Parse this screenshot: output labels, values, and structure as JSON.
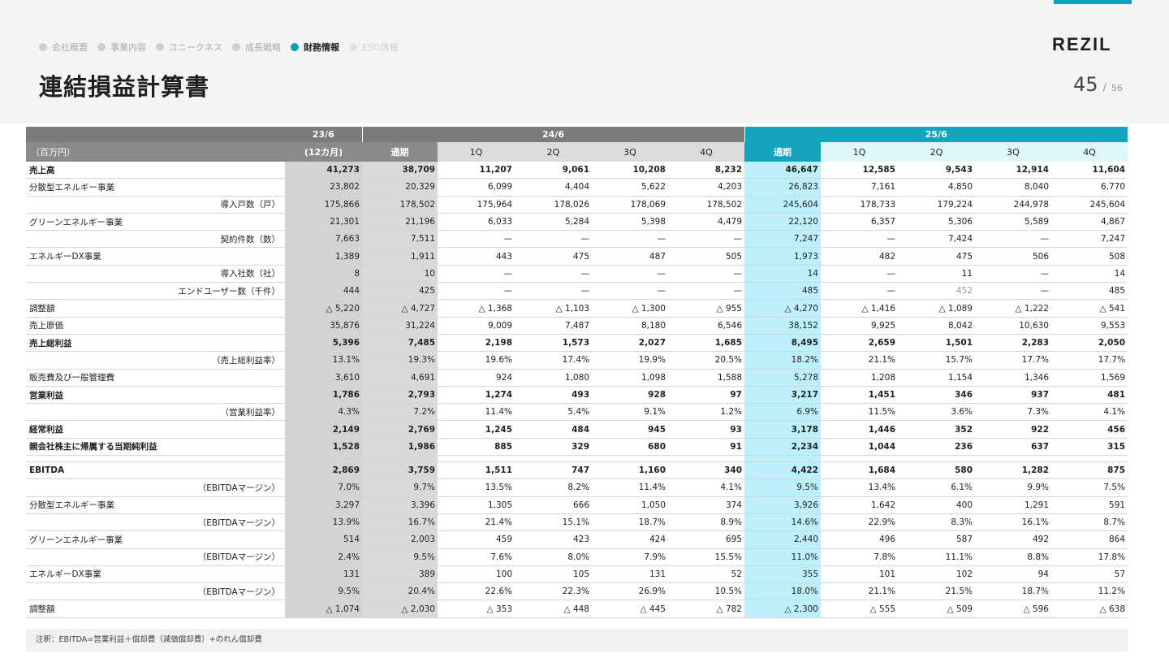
{
  "nav": [
    "会社概要",
    "事業内容",
    "ユニークネス",
    "成長戦略",
    "財務情報",
    "ESG情報"
  ],
  "logo": "REZIL",
  "title": "連結損益計算書",
  "page": {
    "current": "45",
    "sep": "/",
    "total": "56"
  },
  "colors": {
    "accent": "#0aa0bd",
    "fy25_header": "#13a5be",
    "fy25_total_column": "#bdf0fb"
  },
  "table": {
    "header1": {
      "fy23": "23/6",
      "fy24": "24/6",
      "fy25": "25/6"
    },
    "header2": {
      "unit": "（百万円）",
      "fy23": "(12カ月)",
      "fy24": [
        "通期",
        "1Q",
        "2Q",
        "3Q",
        "4Q"
      ],
      "fy25": [
        "通期",
        "1Q",
        "2Q",
        "3Q",
        "4Q"
      ]
    },
    "rows": [
      {
        "label": "売上高",
        "align": "left",
        "bold": true,
        "values": [
          "41,273",
          "38,709",
          "11,207",
          "9,061",
          "10,208",
          "8,232",
          "46,647",
          "12,585",
          "9,543",
          "12,914",
          "11,604"
        ]
      },
      {
        "label": "分散型エネルギー事業",
        "align": "left",
        "values": [
          "23,802",
          "20,329",
          "6,099",
          "4,404",
          "5,622",
          "4,203",
          "26,823",
          "7,161",
          "4,850",
          "8,040",
          "6,770"
        ]
      },
      {
        "label": "導入戸数（戸）",
        "align": "right",
        "values": [
          "175,866",
          "178,502",
          "175,964",
          "178,026",
          "178,069",
          "178,502",
          "245,604",
          "178,733",
          "179,224",
          "244,978",
          "245,604"
        ]
      },
      {
        "label": "グリーンエネルギー事業",
        "align": "left",
        "values": [
          "21,301",
          "21,196",
          "6,033",
          "5,284",
          "5,398",
          "4,479",
          "22,120",
          "6,357",
          "5,306",
          "5,589",
          "4,867"
        ]
      },
      {
        "label": "契約件数（数）",
        "align": "right",
        "values": [
          "7,663",
          "7,511",
          "—",
          "—",
          "—",
          "—",
          "7,247",
          "—",
          "7,424",
          "—",
          "7,247"
        ]
      },
      {
        "label": "エネルギーDX事業",
        "align": "left",
        "values": [
          "1,389",
          "1,911",
          "443",
          "475",
          "487",
          "505",
          "1,973",
          "482",
          "475",
          "506",
          "508"
        ]
      },
      {
        "label": "導入社数（社）",
        "align": "right",
        "values": [
          "8",
          "10",
          "—",
          "—",
          "—",
          "—",
          "14",
          "—",
          "11",
          "—",
          "14"
        ]
      },
      {
        "label": "エンドユーザー数（千件）",
        "align": "right",
        "values": [
          "444",
          "425",
          "—",
          "—",
          "—",
          "—",
          "485",
          "—",
          "452",
          "—",
          "485"
        ]
      },
      {
        "label": "調整額",
        "align": "left",
        "values": [
          "△ 5,220",
          "△ 4,727",
          "△ 1,368",
          "△ 1,103",
          "△ 1,300",
          "△ 955",
          "△ 4,270",
          "△ 1,416",
          "△ 1,089",
          "△ 1,222",
          "△ 541"
        ]
      },
      {
        "label": "売上原価",
        "align": "left",
        "values": [
          "35,876",
          "31,224",
          "9,009",
          "7,487",
          "8,180",
          "6,546",
          "38,152",
          "9,925",
          "8,042",
          "10,630",
          "9,553"
        ]
      },
      {
        "label": "売上総利益",
        "align": "left",
        "bold": true,
        "values": [
          "5,396",
          "7,485",
          "2,198",
          "1,573",
          "2,027",
          "1,685",
          "8,495",
          "2,659",
          "1,501",
          "2,283",
          "2,050"
        ]
      },
      {
        "label": "（売上総利益率）",
        "align": "right",
        "values": [
          "13.1%",
          "19.3%",
          "19.6%",
          "17.4%",
          "19.9%",
          "20.5%",
          "18.2%",
          "21.1%",
          "15.7%",
          "17.7%",
          "17.7%"
        ]
      },
      {
        "label": "販売費及び一般管理費",
        "align": "left",
        "values": [
          "3,610",
          "4,691",
          "924",
          "1,080",
          "1,098",
          "1,588",
          "5,278",
          "1,208",
          "1,154",
          "1,346",
          "1,569"
        ]
      },
      {
        "label": "営業利益",
        "align": "left",
        "bold": true,
        "values": [
          "1,786",
          "2,793",
          "1,274",
          "493",
          "928",
          "97",
          "3,217",
          "1,451",
          "346",
          "937",
          "481"
        ]
      },
      {
        "label": "（営業利益率）",
        "align": "right",
        "values": [
          "4.3%",
          "7.2%",
          "11.4%",
          "5.4%",
          "9.1%",
          "1.2%",
          "6.9%",
          "11.5%",
          "3.6%",
          "7.3%",
          "4.1%"
        ]
      },
      {
        "label": "経常利益",
        "align": "left",
        "bold": true,
        "values": [
          "2,149",
          "2,769",
          "1,245",
          "484",
          "945",
          "93",
          "3,178",
          "1,446",
          "352",
          "922",
          "456"
        ]
      },
      {
        "label": "親会社株主に帰属する当期純利益",
        "align": "left",
        "bold": true,
        "values": [
          "1,528",
          "1,986",
          "885",
          "329",
          "680",
          "91",
          "2,234",
          "1,044",
          "236",
          "637",
          "315"
        ]
      },
      {
        "spacer": true
      },
      {
        "label": "EBITDA",
        "align": "left",
        "bold": true,
        "values": [
          "2,869",
          "3,759",
          "1,511",
          "747",
          "1,160",
          "340",
          "4,422",
          "1,684",
          "580",
          "1,282",
          "875"
        ]
      },
      {
        "label": "（EBITDAマージン）",
        "align": "right",
        "values": [
          "7.0%",
          "9.7%",
          "13.5%",
          "8.2%",
          "11.4%",
          "4.1%",
          "9.5%",
          "13.4%",
          "6.1%",
          "9.9%",
          "7.5%"
        ]
      },
      {
        "label": "分散型エネルギー事業",
        "align": "left",
        "values": [
          "3,297",
          "3,396",
          "1,305",
          "666",
          "1,050",
          "374",
          "3,926",
          "1,642",
          "400",
          "1,291",
          "591"
        ]
      },
      {
        "label": "（EBITDAマージン）",
        "align": "right",
        "values": [
          "13.9%",
          "16.7%",
          "21.4%",
          "15.1%",
          "18.7%",
          "8.9%",
          "14.6%",
          "22.9%",
          "8.3%",
          "16.1%",
          "8.7%"
        ]
      },
      {
        "label": "グリーンエネルギー事業",
        "align": "left",
        "values": [
          "514",
          "2,003",
          "459",
          "423",
          "424",
          "695",
          "2,440",
          "496",
          "587",
          "492",
          "864"
        ]
      },
      {
        "label": "（EBITDAマージン）",
        "align": "right",
        "values": [
          "2.4%",
          "9.5%",
          "7.6%",
          "8.0%",
          "7.9%",
          "15.5%",
          "11.0%",
          "7.8%",
          "11.1%",
          "8.8%",
          "17.8%"
        ]
      },
      {
        "label": "エネルギーDX事業",
        "align": "left",
        "values": [
          "131",
          "389",
          "100",
          "105",
          "131",
          "52",
          "355",
          "101",
          "102",
          "94",
          "57"
        ]
      },
      {
        "label": "（EBITDAマージン）",
        "align": "right",
        "values": [
          "9.5%",
          "20.4%",
          "22.6%",
          "22.3%",
          "26.9%",
          "10.5%",
          "18.0%",
          "21.1%",
          "21.5%",
          "18.7%",
          "11.2%"
        ]
      },
      {
        "label": "調整額",
        "align": "left",
        "values": [
          "△ 1,074",
          "△ 2,030",
          "△ 353",
          "△ 448",
          "△ 445",
          "△ 782",
          "△ 2,300",
          "△ 555",
          "△ 509",
          "△ 596",
          "△ 638"
        ]
      }
    ]
  },
  "note": "注釈：EBITDA=営業利益＋償却費（減価償却費）+のれん償却費"
}
